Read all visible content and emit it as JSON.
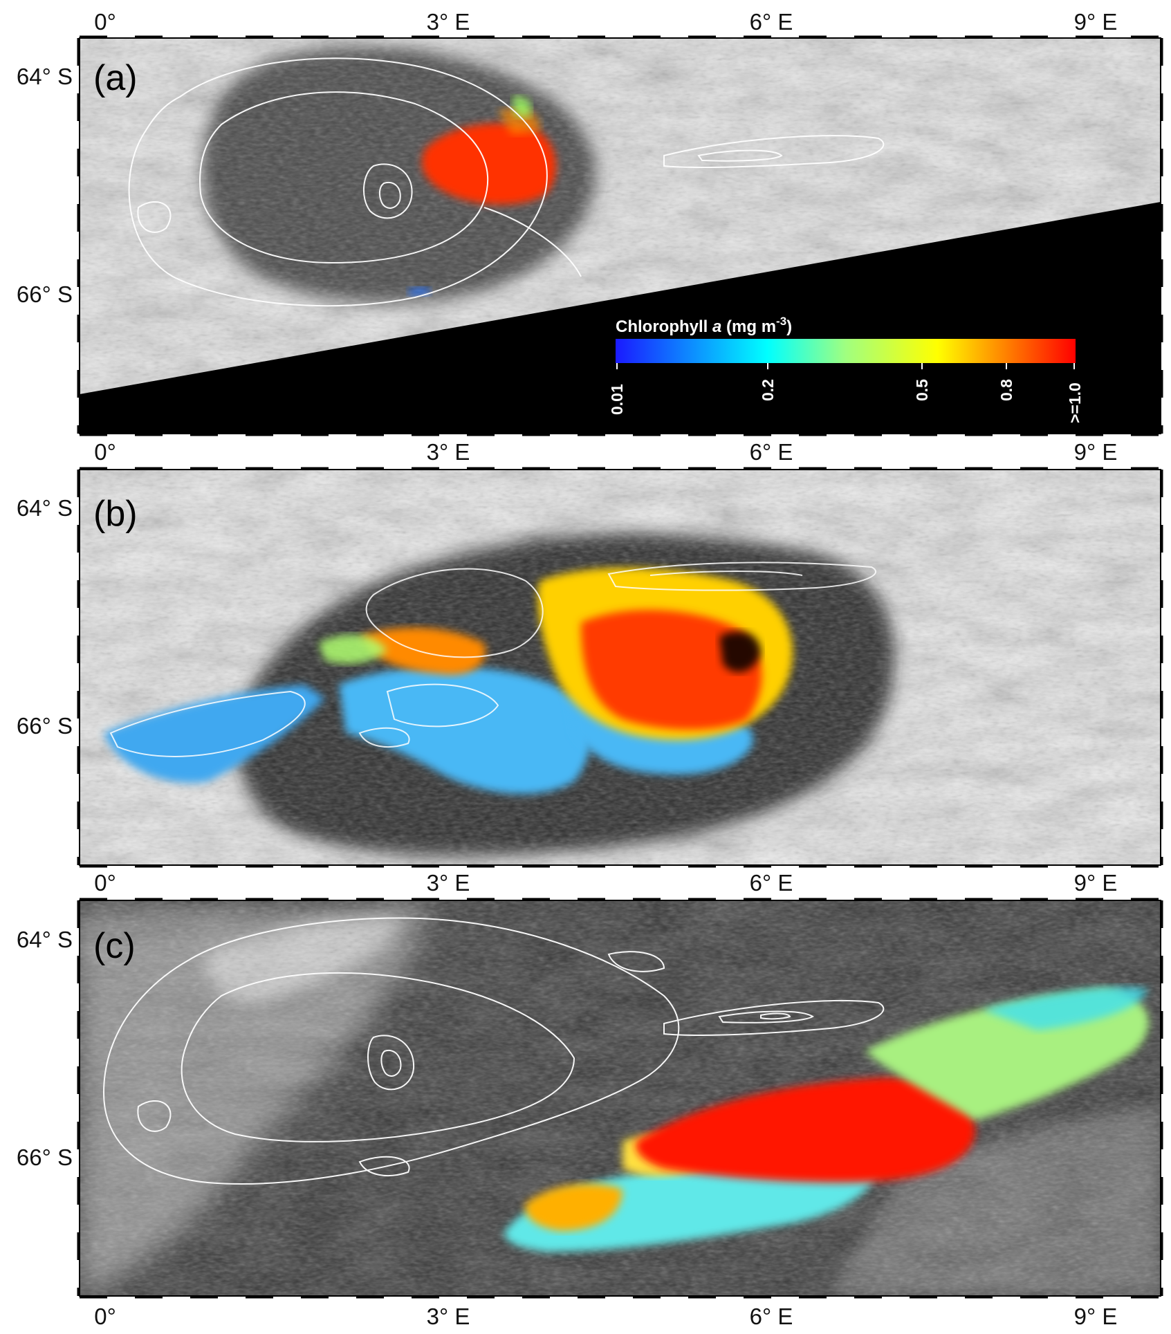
{
  "figure": {
    "colorbar": {
      "title_prefix": "Chlorophyll ",
      "title_italic": "a",
      "title_units": " (mg m",
      "title_exp": "-3",
      "title_close": ")",
      "ticks": [
        "0.01",
        "0.2",
        "0.5",
        "0.8",
        ">=1.0"
      ],
      "colors": [
        "#1a1aff",
        "#00ffff",
        "#ffff00",
        "#ff8000",
        "#ff0000"
      ]
    },
    "lon_labels": [
      "0°",
      "3° E",
      "6° E",
      "9° E"
    ],
    "lat_labels": [
      "64° S",
      "66° S"
    ],
    "panels": [
      {
        "label": "(a)"
      },
      {
        "label": "(b)"
      },
      {
        "label": "(c)"
      }
    ]
  }
}
